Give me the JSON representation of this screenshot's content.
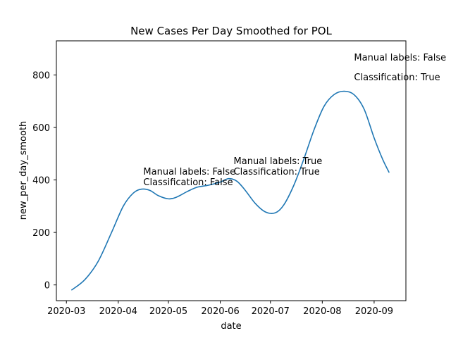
{
  "chart_data": {
    "type": "line",
    "title": "New Cases Per Day Smoothed for POL",
    "xlabel": "date",
    "ylabel": "new_per_day_smooth",
    "x_ticks": [
      "2020-03",
      "2020-04",
      "2020-05",
      "2020-06",
      "2020-07",
      "2020-08",
      "2020-09"
    ],
    "y_ticks": [
      0,
      200,
      400,
      600,
      800
    ],
    "xlim": [
      "2020-02-24",
      "2020-09-20"
    ],
    "ylim": [
      -60,
      930
    ],
    "grid": false,
    "series": [
      {
        "color": "#1f77b4",
        "x": [
          "2020-03-04",
          "2020-03-12",
          "2020-03-20",
          "2020-03-28",
          "2020-04-04",
          "2020-04-10",
          "2020-04-15",
          "2020-04-20",
          "2020-04-25",
          "2020-05-01",
          "2020-05-06",
          "2020-05-12",
          "2020-05-18",
          "2020-05-25",
          "2020-06-01",
          "2020-06-06",
          "2020-06-11",
          "2020-06-16",
          "2020-06-22",
          "2020-06-28",
          "2020-07-04",
          "2020-07-09",
          "2020-07-15",
          "2020-07-21",
          "2020-07-27",
          "2020-08-02",
          "2020-08-08",
          "2020-08-14",
          "2020-08-20",
          "2020-08-26",
          "2020-09-01",
          "2020-09-06",
          "2020-09-10"
        ],
        "y": [
          -20,
          20,
          90,
          200,
          300,
          350,
          365,
          360,
          340,
          328,
          335,
          355,
          372,
          380,
          392,
          405,
          395,
          360,
          310,
          278,
          275,
          305,
          380,
          480,
          590,
          680,
          725,
          738,
          725,
          670,
          560,
          480,
          428
        ]
      }
    ],
    "annotations": [
      {
        "date": "2020-04-16",
        "y": 420,
        "text": "Manual labels: False"
      },
      {
        "date": "2020-04-16",
        "y": 380,
        "text": "Classification: False"
      },
      {
        "date": "2020-06-09",
        "y": 460,
        "text": "Manual labels: True"
      },
      {
        "date": "2020-06-09",
        "y": 420,
        "text": "Classification: True"
      },
      {
        "date": "2020-08-20",
        "y": 855,
        "text": "Manual labels: False"
      },
      {
        "date": "2020-08-20",
        "y": 780,
        "text": "Classification: True"
      }
    ]
  }
}
